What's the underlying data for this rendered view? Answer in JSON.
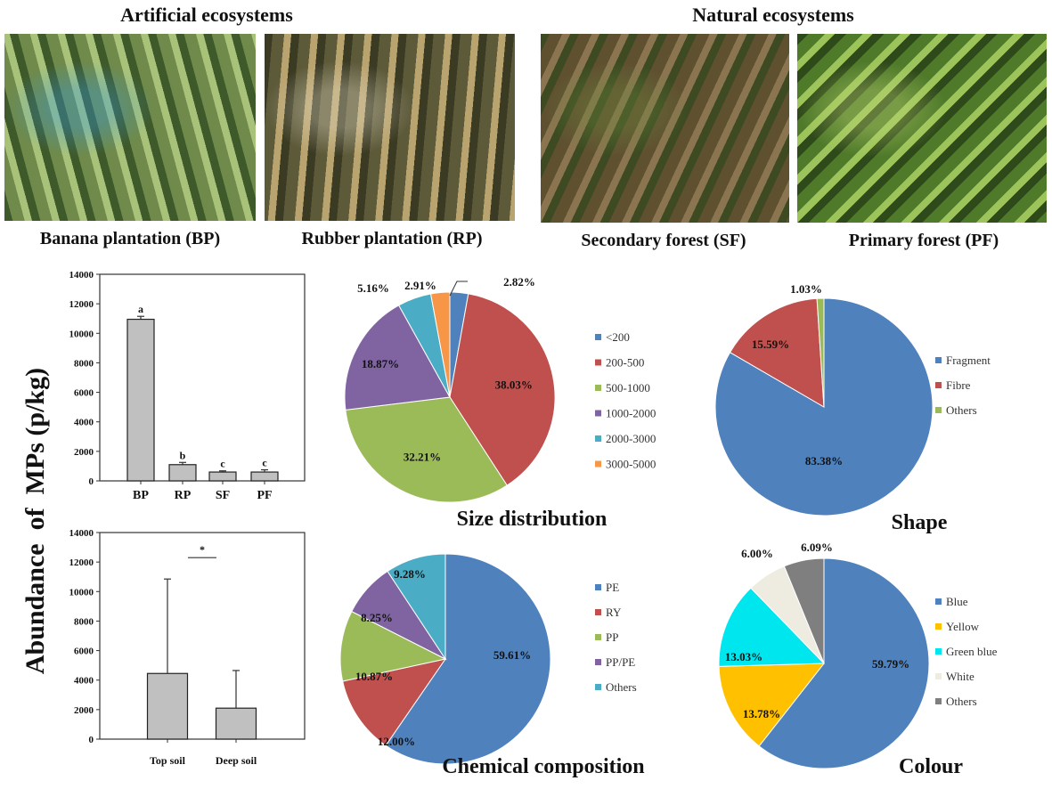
{
  "headers": {
    "artificial": "Artificial ecosystems",
    "natural": "Natural ecosystems"
  },
  "photos": [
    {
      "caption": "Banana plantation (BP)",
      "tones": [
        "#6f8a4a",
        "#a9c27a",
        "#3f5a2a"
      ],
      "accent": "#2f9be8"
    },
    {
      "caption": "Rubber plantation (RP)",
      "tones": [
        "#5d5a3a",
        "#b9a36e",
        "#3b3a22"
      ],
      "accent": "#e8e0cc"
    },
    {
      "caption": "Secondary forest (SF)",
      "tones": [
        "#5f5030",
        "#8a7550",
        "#3d4a22"
      ],
      "accent": "#6d8a3c"
    },
    {
      "caption": "Primary forest (PF)",
      "tones": [
        "#4f7a2a",
        "#9cc45a",
        "#2f4a1a"
      ],
      "accent": "#c9dd7a"
    }
  ],
  "y_axis_label": "Abundance  of  MPs (p/kg)",
  "chart_data": [
    {
      "type": "bar",
      "categories": [
        "BP",
        "RP",
        "SF",
        "PF"
      ],
      "values": [
        10950,
        1100,
        600,
        600
      ],
      "error_upper": [
        11150,
        1250,
        680,
        750
      ],
      "letters": [
        "a",
        "b",
        "c",
        "c"
      ],
      "ylim": [
        0,
        14000
      ],
      "yticks": [
        0,
        2000,
        4000,
        6000,
        8000,
        10000,
        12000,
        14000
      ],
      "bar_color": "#c0c0c0"
    },
    {
      "type": "bar",
      "categories": [
        "Top soil",
        "Deep soil"
      ],
      "values": [
        4450,
        2100
      ],
      "error_upper": [
        10850,
        4650
      ],
      "annotation": "*",
      "ylim": [
        0,
        14000
      ],
      "yticks": [
        0,
        2000,
        4000,
        6000,
        8000,
        10000,
        12000,
        14000
      ],
      "bar_color": "#c0c0c0"
    },
    {
      "type": "pie",
      "title": "Size distribution",
      "labels": [
        "<200",
        "200-500",
        "500-1000",
        "1000-2000",
        "2000-3000",
        "3000-5000"
      ],
      "values": [
        2.82,
        38.03,
        32.21,
        18.87,
        5.16,
        2.91
      ],
      "value_labels": [
        "2.82%",
        "38.03%",
        "32.21%",
        "18.87%",
        "5.16%",
        "2.91%"
      ],
      "colors": [
        "#4f81bd",
        "#c0504d",
        "#9bbb59",
        "#8064a2",
        "#4bacc6",
        "#f79646"
      ],
      "legend": "right"
    },
    {
      "type": "pie",
      "title": "Shape",
      "labels": [
        "Fragment",
        "Fibre",
        "Others"
      ],
      "values": [
        83.38,
        15.59,
        1.03
      ],
      "value_labels": [
        "83.38%",
        "15.59%",
        "1.03%"
      ],
      "colors": [
        "#4f81bd",
        "#c0504d",
        "#9bbb59"
      ],
      "legend": "right"
    },
    {
      "type": "pie",
      "title": "Chemical composition",
      "labels": [
        "PE",
        "RY",
        "PP",
        "PP/PE",
        "Others"
      ],
      "values": [
        59.61,
        12.0,
        10.87,
        8.25,
        9.28
      ],
      "value_labels": [
        "59.61%",
        "12.00%",
        "10.87%",
        "8.25%",
        "9.28%"
      ],
      "colors": [
        "#4f81bd",
        "#c0504d",
        "#9bbb59",
        "#8064a2",
        "#4bacc6"
      ],
      "legend": "right"
    },
    {
      "type": "pie",
      "title": "Colour",
      "labels": [
        "Blue",
        "Yellow",
        "Green blue",
        "White",
        "Others"
      ],
      "values": [
        59.79,
        13.78,
        13.03,
        6.0,
        6.09
      ],
      "value_labels": [
        "59.79%",
        "13.78%",
        "13.03%",
        "6.00%",
        "6.09%"
      ],
      "colors": [
        "#4f81bd",
        "#ffc000",
        "#00e6ef",
        "#eeece1",
        "#7f7f7f"
      ],
      "legend": "right"
    }
  ]
}
